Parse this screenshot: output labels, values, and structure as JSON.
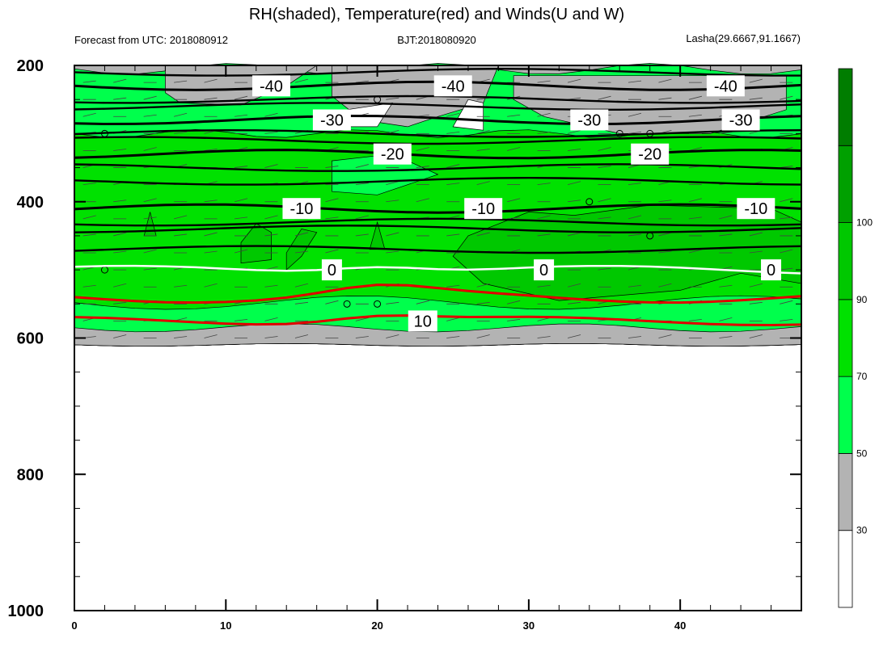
{
  "chart_data": {
    "type": "heatmap",
    "title": "RH(shaded), Temperature(red) and Winds(U and W)",
    "subtitle_left": "Forecast from UTC: 2018080912",
    "subtitle_center": "BJT:2018080920",
    "subtitle_right": "Lasha(29.6667,91.1667)",
    "xlabel": "",
    "ylabel": "",
    "x_ticks": [
      0,
      10,
      20,
      30,
      40
    ],
    "xlim": [
      0,
      48
    ],
    "y_ticks": [
      200,
      400,
      600,
      800,
      1000
    ],
    "ylim": [
      1000,
      200
    ],
    "colorbar": {
      "levels": [
        30,
        50,
        70,
        90,
        100
      ],
      "colors": [
        "#ffffff",
        "#b3b3b3",
        "#00ff4c",
        "#00e100",
        "#00c800",
        "#00a000",
        "#007d00"
      ]
    },
    "temperature_isotherms": [
      {
        "value": "-40",
        "pressure": 230
      },
      {
        "value": "-30",
        "pressure": 280
      },
      {
        "value": "-20",
        "pressure": 330
      },
      {
        "value": "-10",
        "pressure": 410
      },
      {
        "value": "0",
        "pressure": 500
      },
      {
        "value": "10",
        "pressure": 575
      }
    ],
    "surface_pressure_hpa": 610,
    "grid": false,
    "legend": "right colorbar"
  }
}
